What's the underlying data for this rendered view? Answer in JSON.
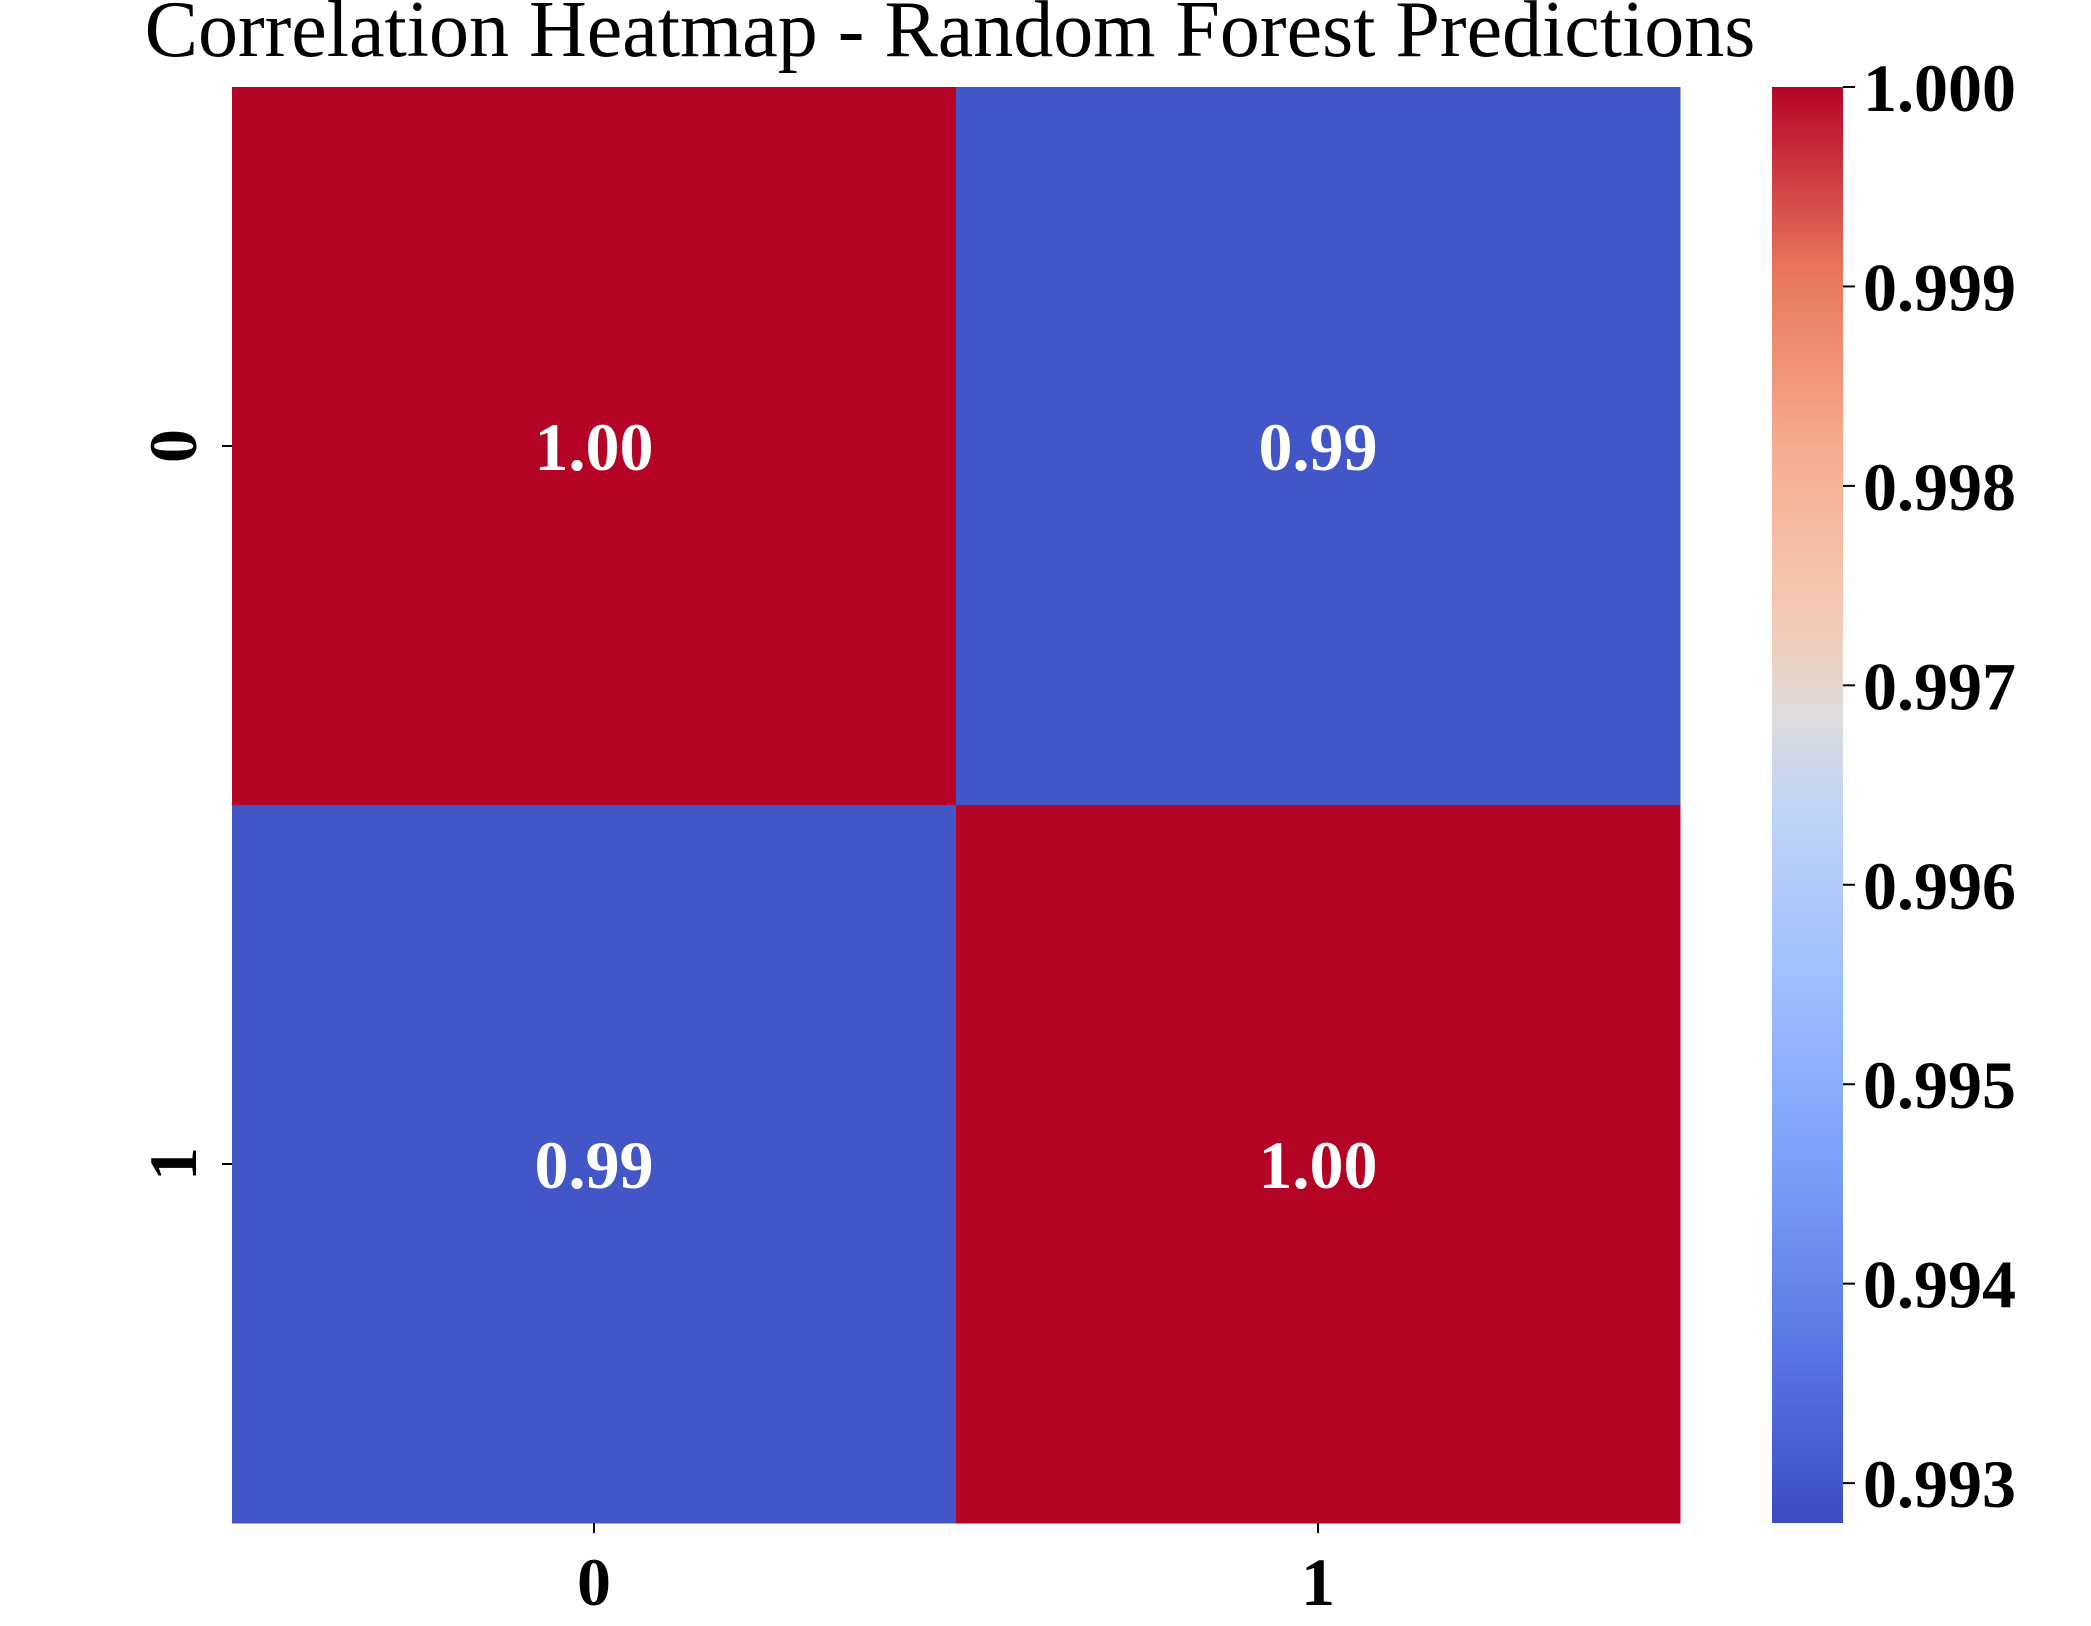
{
  "chart_data": {
    "type": "heatmap",
    "title": "Correlation Heatmap - Random Forest Predictions",
    "xlabel": "",
    "ylabel": "",
    "x_categories": [
      "0",
      "1"
    ],
    "y_categories": [
      "0",
      "1"
    ],
    "values": [
      [
        1.0,
        0.993
      ],
      [
        0.993,
        1.0
      ]
    ],
    "annotations": [
      [
        "1.00",
        "0.99"
      ],
      [
        "0.99",
        "1.00"
      ]
    ],
    "colormap": "coolwarm",
    "colorbar": {
      "vmin": 0.9928,
      "vmax": 1.0,
      "ticks": [
        0.993,
        0.994,
        0.995,
        0.996,
        0.997,
        0.998,
        0.999,
        1.0
      ],
      "tick_labels": [
        "0.993",
        "0.994",
        "0.995",
        "0.996",
        "0.997",
        "0.998",
        "0.999",
        "1.000"
      ]
    },
    "colors": {
      "low": "#3b4cc0",
      "high": "#b40426",
      "annotation_text": "#ffffff"
    },
    "grid": false,
    "legend": "colorbar-right"
  }
}
